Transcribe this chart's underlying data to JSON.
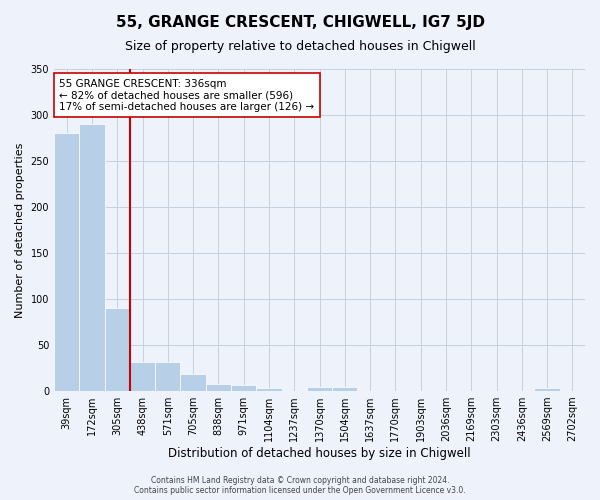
{
  "title": "55, GRANGE CRESCENT, CHIGWELL, IG7 5JD",
  "subtitle": "Size of property relative to detached houses in Chigwell",
  "xlabel": "Distribution of detached houses by size in Chigwell",
  "ylabel": "Number of detached properties",
  "footer_line1": "Contains HM Land Registry data © Crown copyright and database right 2024.",
  "footer_line2": "Contains public sector information licensed under the Open Government Licence v3.0.",
  "annotation_line1": "55 GRANGE CRESCENT: 336sqm",
  "annotation_line2": "← 82% of detached houses are smaller (596)",
  "annotation_line3": "17% of semi-detached houses are larger (126) →",
  "bar_color": "#b8cfe8",
  "bar_edge_color": "#b8cfe8",
  "line_color": "#cc0000",
  "bg_color": "#eef2fb",
  "categories": [
    "39sqm",
    "172sqm",
    "305sqm",
    "438sqm",
    "571sqm",
    "705sqm",
    "838sqm",
    "971sqm",
    "1104sqm",
    "1237sqm",
    "1370sqm",
    "1504sqm",
    "1637sqm",
    "1770sqm",
    "1903sqm",
    "2036sqm",
    "2169sqm",
    "2303sqm",
    "2436sqm",
    "2569sqm",
    "2702sqm"
  ],
  "values": [
    280,
    290,
    90,
    31,
    31,
    18,
    8,
    6,
    3,
    0,
    4,
    4,
    0,
    0,
    0,
    0,
    0,
    0,
    0,
    3,
    0
  ],
  "ylim": [
    0,
    350
  ],
  "yticks": [
    0,
    50,
    100,
    150,
    200,
    250,
    300,
    350
  ],
  "vline_bar_index": 2,
  "title_fontsize": 11,
  "subtitle_fontsize": 9,
  "tick_fontsize": 7,
  "ylabel_fontsize": 8,
  "xlabel_fontsize": 8.5,
  "annotation_fontsize": 7.5,
  "footer_fontsize": 5.5
}
